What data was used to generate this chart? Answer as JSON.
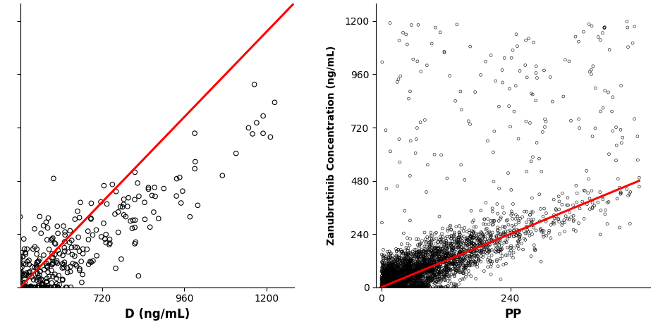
{
  "ylabel": "Zanubrutinib Concentration (ng/mL)",
  "subplot1": {
    "xlabel": "D (ng/mL)",
    "xlim": [
      480,
      1280
    ],
    "ylim": [
      0,
      1280
    ],
    "xticks": [
      720,
      960,
      1200
    ],
    "yticks": [
      0,
      240,
      480,
      720,
      960,
      1200
    ],
    "yticklabels": [
      "",
      "",
      "",
      "",
      "",
      ""
    ]
  },
  "subplot2": {
    "xlabel": "PP",
    "xlim": [
      -10,
      500
    ],
    "ylim": [
      0,
      1280
    ],
    "xticks": [
      0,
      240
    ],
    "yticks": [
      0,
      240,
      480,
      720,
      960,
      1200
    ],
    "yticklabels": [
      "0",
      "240",
      "480",
      "720",
      "960",
      "1200"
    ]
  },
  "line_color": "red",
  "line_lw": 2.2,
  "marker_fc": "none",
  "marker_ec": "black",
  "fig_bg": "white",
  "axis_bg": "white"
}
